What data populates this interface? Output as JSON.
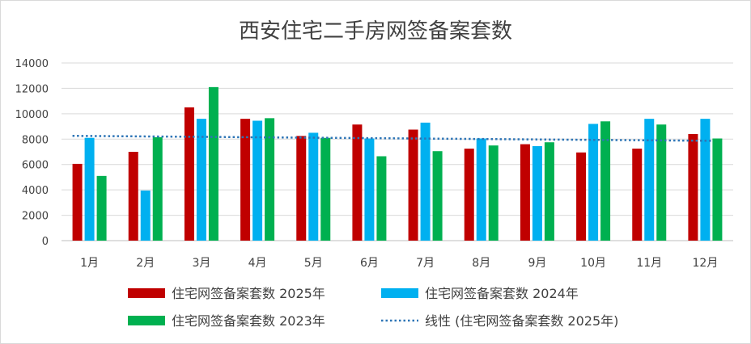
{
  "chart_data": {
    "type": "bar",
    "title": "西安住宅二手房网签备案套数",
    "categories": [
      "1月",
      "2月",
      "3月",
      "4月",
      "5月",
      "6月",
      "7月",
      "8月",
      "9月",
      "10月",
      "11月",
      "12月"
    ],
    "series": [
      {
        "name": "住宅网签备案套数 2025年",
        "color": "#c00000",
        "values": [
          6050,
          7000,
          10500,
          9600,
          8250,
          9150,
          8750,
          7250,
          7600,
          6950,
          7250,
          8400
        ]
      },
      {
        "name": "住宅网签备案套数 2024年",
        "color": "#00b0f0",
        "values": [
          8100,
          3950,
          9600,
          9450,
          8500,
          8050,
          9300,
          8050,
          7450,
          9200,
          9600,
          9600
        ]
      },
      {
        "name": "住宅网签备案套数 2023年",
        "color": "#00b050",
        "values": [
          5100,
          8150,
          12100,
          9650,
          8100,
          6650,
          7050,
          7500,
          7750,
          9400,
          9150,
          8050
        ]
      }
    ],
    "trendline": {
      "name": "线性 (住宅网签备案套数 2025年)",
      "color": "#2e75b6",
      "type": "linear",
      "of_series": "住宅网签备案套数 2025年"
    },
    "ylim": [
      0,
      14000
    ],
    "yticks": [
      "0",
      "2000",
      "4000",
      "6000",
      "8000",
      "10000",
      "12000",
      "14000"
    ],
    "grid": true,
    "legend_position": "bottom",
    "xlabel": "",
    "ylabel": ""
  }
}
